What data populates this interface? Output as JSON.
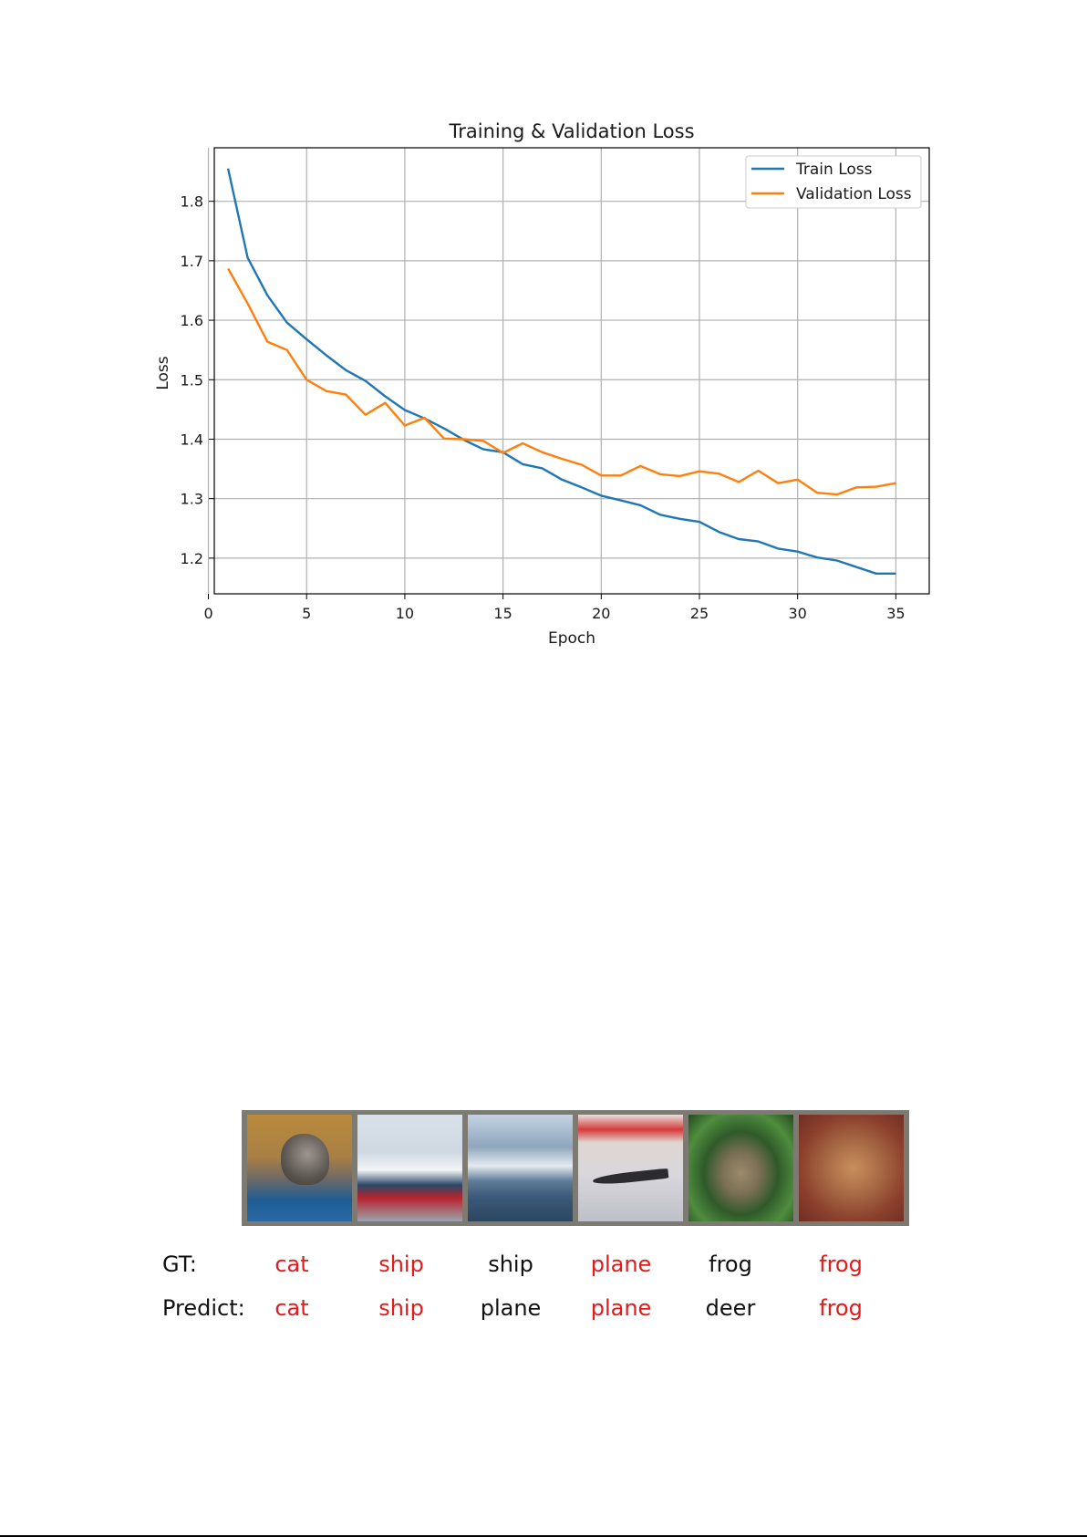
{
  "chart_data": {
    "type": "line",
    "title": "Training & Validation Loss",
    "xlabel": "Epoch",
    "ylabel": "Loss",
    "xlim": [
      0.3,
      36.7
    ],
    "ylim": [
      1.14,
      1.89
    ],
    "xticks": [
      0,
      5,
      10,
      15,
      20,
      25,
      30,
      35
    ],
    "yticks": [
      1.2,
      1.3,
      1.4,
      1.5,
      1.6,
      1.7,
      1.8
    ],
    "grid": true,
    "legend_position": "top-right",
    "series": [
      {
        "name": "Train Loss",
        "color": "#1f77b4",
        "x": [
          1,
          2,
          3,
          4,
          5,
          6,
          7,
          8,
          9,
          10,
          11,
          12,
          13,
          14,
          15,
          16,
          17,
          18,
          19,
          20,
          21,
          22,
          23,
          24,
          25,
          26,
          27,
          28,
          29,
          30,
          31,
          32,
          33,
          34,
          35
        ],
        "y": [
          1.855,
          1.705,
          1.642,
          1.596,
          1.568,
          1.541,
          1.516,
          1.498,
          1.472,
          1.449,
          1.435,
          1.418,
          1.399,
          1.383,
          1.378,
          1.358,
          1.351,
          1.332,
          1.319,
          1.305,
          1.297,
          1.289,
          1.273,
          1.266,
          1.261,
          1.244,
          1.232,
          1.228,
          1.216,
          1.211,
          1.201,
          1.196,
          1.185,
          1.174,
          1.174
        ]
      },
      {
        "name": "Validation Loss",
        "color": "#ff7f0e",
        "x": [
          1,
          2,
          3,
          4,
          5,
          6,
          7,
          8,
          9,
          10,
          11,
          12,
          13,
          14,
          15,
          16,
          17,
          18,
          19,
          20,
          21,
          22,
          23,
          24,
          25,
          26,
          27,
          28,
          29,
          30,
          31,
          32,
          33,
          34,
          35
        ],
        "y": [
          1.687,
          1.628,
          1.564,
          1.55,
          1.5,
          1.481,
          1.475,
          1.441,
          1.461,
          1.423,
          1.436,
          1.401,
          1.4,
          1.397,
          1.377,
          1.393,
          1.378,
          1.367,
          1.357,
          1.339,
          1.339,
          1.355,
          1.341,
          1.338,
          1.346,
          1.342,
          1.328,
          1.347,
          1.326,
          1.332,
          1.31,
          1.307,
          1.319,
          1.32,
          1.326
        ]
      }
    ]
  },
  "predictions": {
    "gt_label": "GT:",
    "predict_label": "Predict:",
    "items": [
      {
        "gt": "cat",
        "pred": "cat",
        "match": true
      },
      {
        "gt": "ship",
        "pred": "ship",
        "match": true
      },
      {
        "gt": "ship",
        "pred": "plane",
        "match": false
      },
      {
        "gt": "plane",
        "pred": "plane",
        "match": true
      },
      {
        "gt": "frog",
        "pred": "deer",
        "match": false
      },
      {
        "gt": "frog",
        "pred": "frog",
        "match": true
      }
    ],
    "colors": {
      "match": "#e21a1a",
      "mismatch": "#111111"
    }
  }
}
